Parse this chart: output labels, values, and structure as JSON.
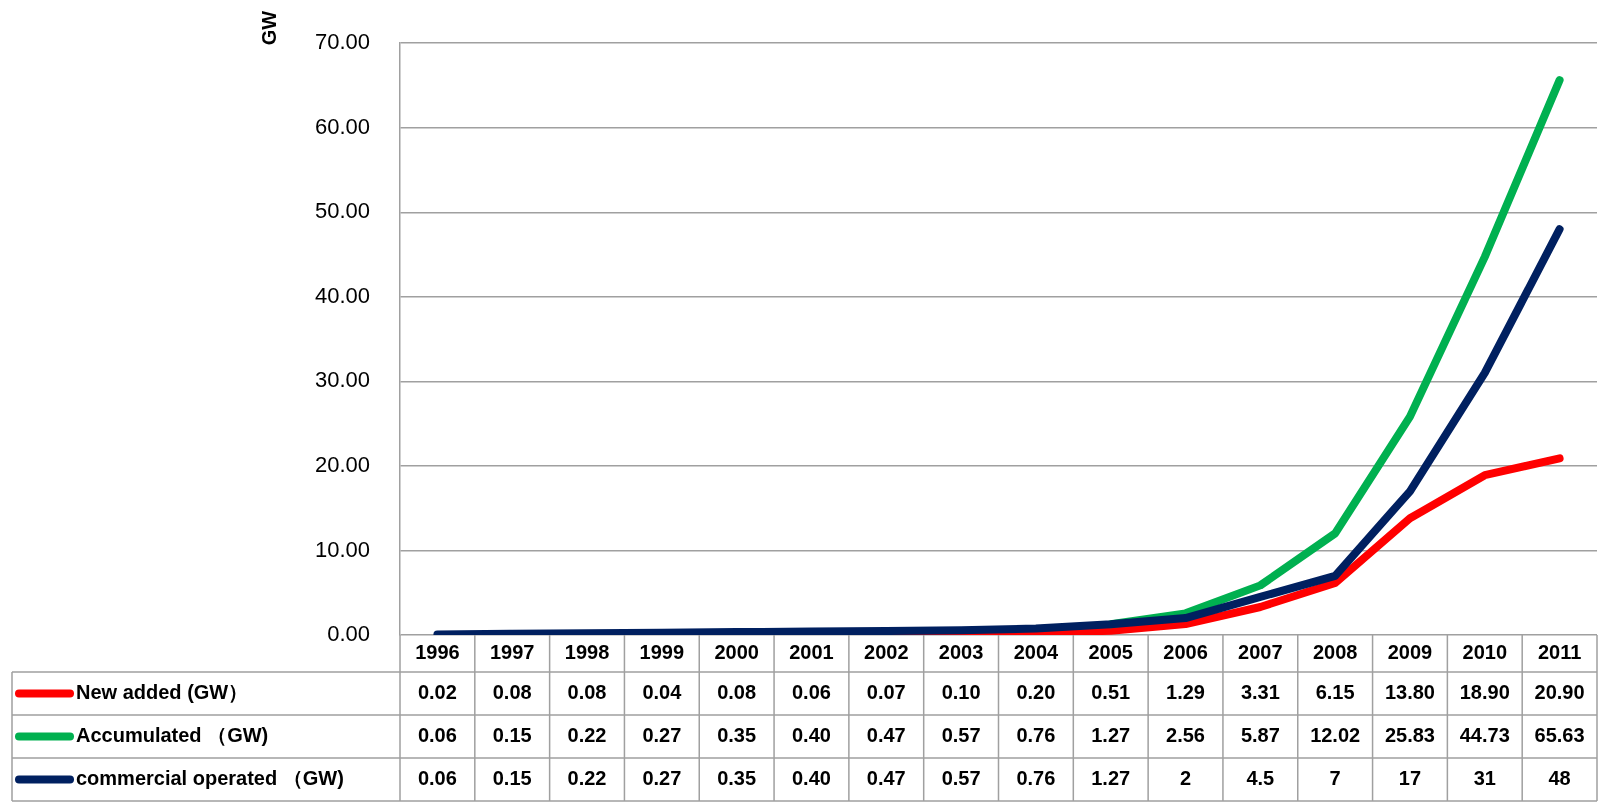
{
  "chart_data": {
    "type": "line",
    "ylabel": "GW",
    "categories": [
      "1996",
      "1997",
      "1998",
      "1999",
      "2000",
      "2001",
      "2002",
      "2003",
      "2004",
      "2005",
      "2006",
      "2007",
      "2008",
      "2009",
      "2010",
      "2011"
    ],
    "series": [
      {
        "name": "New added (GW）",
        "color": "#ff0000",
        "values": [
          null,
          null,
          null,
          null,
          null,
          null,
          0.07,
          0.1,
          0.2,
          0.51,
          1.29,
          3.31,
          6.15,
          13.8,
          18.9,
          20.9
        ],
        "value_labels": [
          "0.02",
          "0.08",
          "0.08",
          "0.04",
          "0.08",
          "0.06",
          "0.07",
          "0.10",
          "0.20",
          "0.51",
          "1.29",
          "3.31",
          "6.15",
          "13.80",
          "18.90",
          "20.90"
        ]
      },
      {
        "name": "Accumulated （GW)",
        "color": "#00b050",
        "values": [
          null,
          null,
          null,
          null,
          null,
          null,
          null,
          null,
          null,
          1.27,
          2.56,
          5.87,
          12.02,
          25.83,
          44.73,
          65.63
        ],
        "value_labels": [
          "0.06",
          "0.15",
          "0.22",
          "0.27",
          "0.35",
          "0.40",
          "0.47",
          "0.57",
          "0.76",
          "1.27",
          "2.56",
          "5.87",
          "12.02",
          "25.83",
          "44.73",
          "65.63"
        ]
      },
      {
        "name": "commercial operated （GW)",
        "color": "#002060",
        "values": [
          0.06,
          0.15,
          0.22,
          0.27,
          0.35,
          0.4,
          0.47,
          0.57,
          0.76,
          1.27,
          2,
          4.5,
          7,
          17,
          31,
          48
        ],
        "value_labels": [
          "0.06",
          "0.15",
          "0.22",
          "0.27",
          "0.35",
          "0.40",
          "0.47",
          "0.57",
          "0.76",
          "1.27",
          "2",
          "4.5",
          "7",
          "17",
          "31",
          "48"
        ]
      }
    ],
    "ylim": [
      0,
      70
    ],
    "yticks": [
      {
        "value": 0,
        "label": "0.00"
      },
      {
        "value": 10,
        "label": "10.00"
      },
      {
        "value": 20,
        "label": "20.00"
      },
      {
        "value": 30,
        "label": "30.00"
      },
      {
        "value": 40,
        "label": "40.00"
      },
      {
        "value": 50,
        "label": "50.00"
      },
      {
        "value": 60,
        "label": "60.00"
      },
      {
        "value": 70,
        "label": "70.00"
      }
    ],
    "grid": "y",
    "legend": "bottom",
    "marker": "none",
    "line_style": "solid"
  }
}
